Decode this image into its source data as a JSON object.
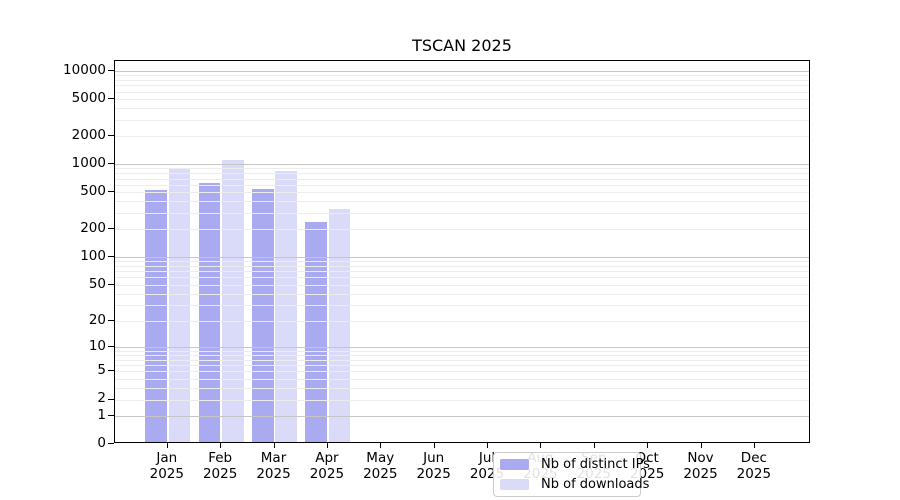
{
  "title": "TSCAN 2025",
  "chart_data": {
    "type": "bar",
    "title": "TSCAN 2025",
    "categories": [
      "Jan 2025",
      "Feb 2025",
      "Mar 2025",
      "Apr 2025",
      "May 2025",
      "Jun 2025",
      "Jul 2025",
      "Aug 2025",
      "Sep 2025",
      "Oct 2025",
      "Nov 2025",
      "Dec 2025"
    ],
    "x_tick_months": [
      "Jan",
      "Feb",
      "Mar",
      "Apr",
      "May",
      "Jun",
      "Jul",
      "Aug",
      "Sep",
      "Oct",
      "Nov",
      "Dec"
    ],
    "x_tick_year": "2025",
    "series": [
      {
        "name": "Nb of distinct IPs",
        "color": "#aaaaf1",
        "values": [
          500,
          600,
          510,
          230,
          null,
          null,
          null,
          null,
          null,
          null,
          null,
          null
        ]
      },
      {
        "name": "Nb of downloads",
        "color": "#dadaf9",
        "values": [
          860,
          1050,
          810,
          315,
          null,
          null,
          null,
          null,
          null,
          null,
          null,
          null
        ]
      }
    ],
    "y_ticks": [
      0,
      1,
      2,
      5,
      10,
      20,
      50,
      100,
      200,
      500,
      1000,
      2000,
      5000,
      10000
    ],
    "y_scale": "log10(1+v)",
    "ylim": [
      0,
      14000
    ],
    "grid": true,
    "legend_position": "bottom-center"
  },
  "colors": {
    "bar_distinct_ips": "#aaaaf1",
    "bar_downloads": "#dadaf9",
    "grid_major": "#c6c6c6",
    "grid_minor": "#ececec",
    "spine": "#000000",
    "legend_border": "#cccccc",
    "background": "#ffffff"
  }
}
